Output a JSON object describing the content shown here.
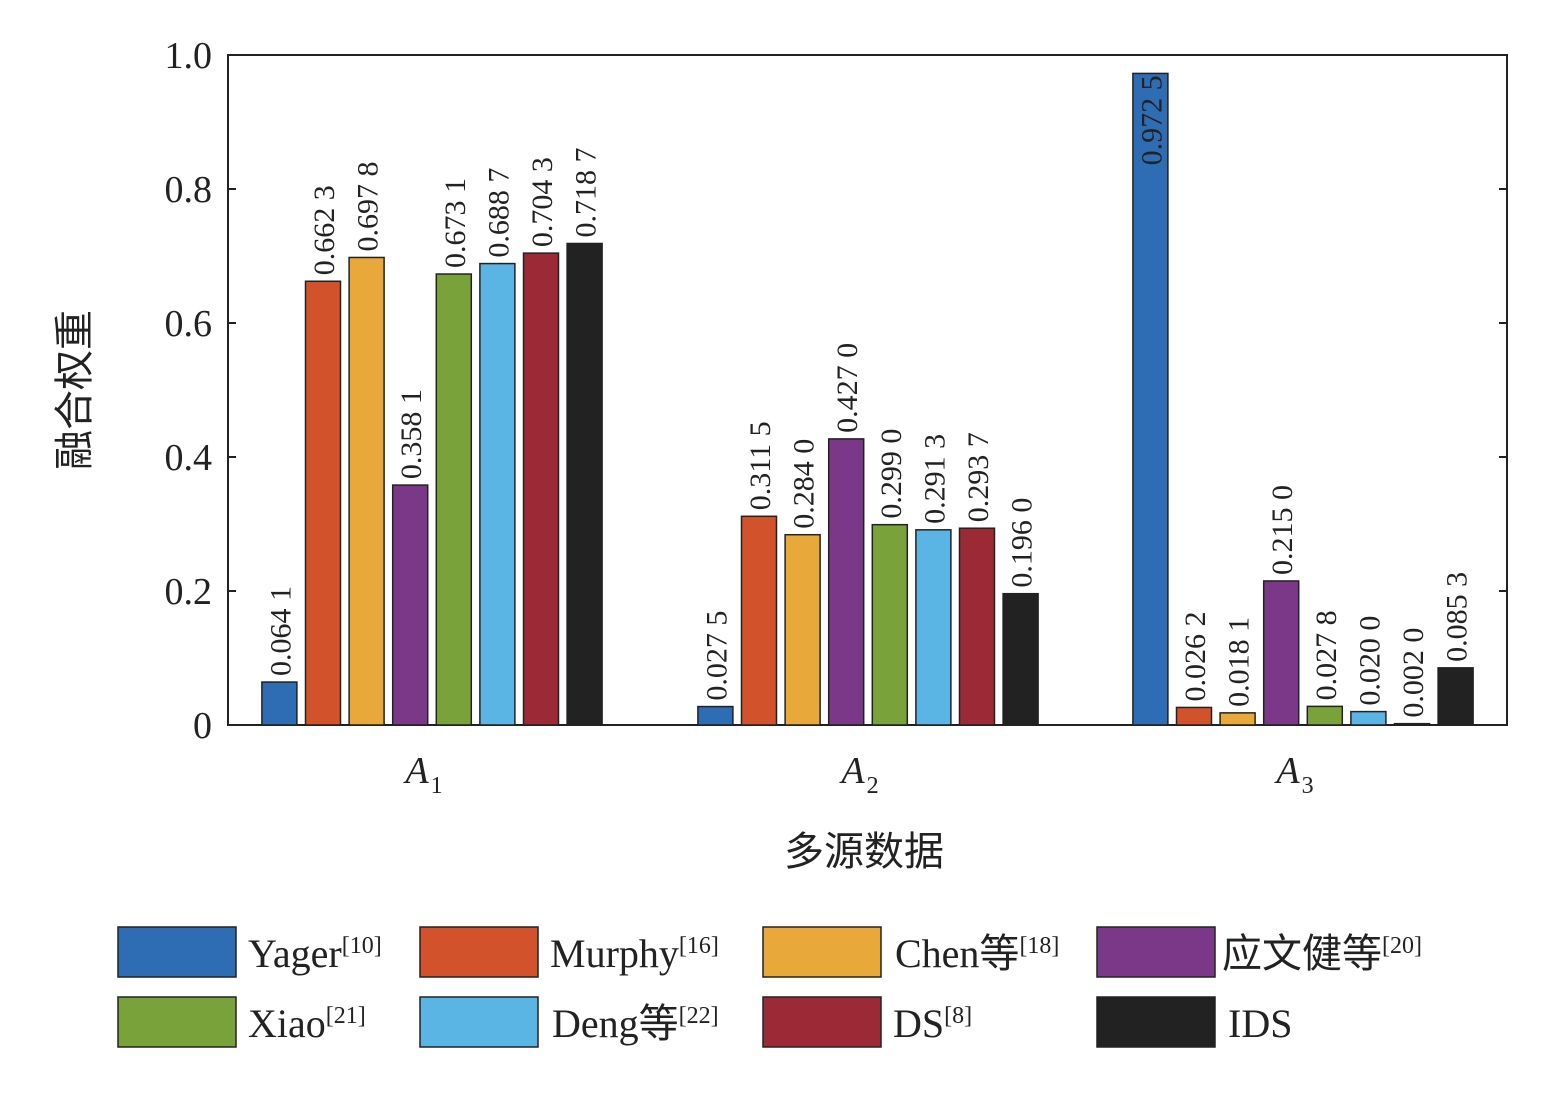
{
  "chart_data": {
    "type": "bar",
    "title": "",
    "xlabel": "多源数据",
    "ylabel": "融合权重",
    "ylim": [
      0,
      1.0
    ],
    "yticks": [
      "0",
      "0.2",
      "0.4",
      "0.6",
      "0.8",
      "1.0"
    ],
    "ytick_values": [
      0,
      0.2,
      0.4,
      0.6,
      0.8,
      1.0
    ],
    "categories": [
      {
        "main": "A",
        "sub": "1"
      },
      {
        "main": "A",
        "sub": "2"
      },
      {
        "main": "A",
        "sub": "3"
      }
    ],
    "legend_position": "bottom",
    "series": [
      {
        "name": "Yager",
        "ref": "[10]",
        "color": "#2e6db4",
        "values": [
          0.0641,
          0.0275,
          0.9725
        ],
        "labels": [
          "0.064 1",
          "0.027 5",
          "0.972 5"
        ]
      },
      {
        "name": "Murphy",
        "ref": "[16]",
        "color": "#d2522b",
        "values": [
          0.6623,
          0.3115,
          0.0262
        ],
        "labels": [
          "0.662 3",
          "0.311 5",
          "0.026 2"
        ]
      },
      {
        "name": "Chen等",
        "ref": "[18]",
        "color": "#e8a93a",
        "values": [
          0.6978,
          0.284,
          0.0181
        ],
        "labels": [
          "0.697 8",
          "0.284 0",
          "0.018 1"
        ]
      },
      {
        "name": "应文健等",
        "ref": "[20]",
        "color": "#7b3888",
        "values": [
          0.3581,
          0.427,
          0.215
        ],
        "labels": [
          "0.358 1",
          "0.427 0",
          "0.215 0"
        ]
      },
      {
        "name": "Xiao",
        "ref": "[21]",
        "color": "#79a23a",
        "values": [
          0.6731,
          0.299,
          0.0278
        ],
        "labels": [
          "0.673 1",
          "0.299 0",
          "0.027 8"
        ]
      },
      {
        "name": "Deng等",
        "ref": "[22]",
        "color": "#5bb5e4",
        "values": [
          0.6887,
          0.2913,
          0.02
        ],
        "labels": [
          "0.688 7",
          "0.291 3",
          "0.020 0"
        ]
      },
      {
        "name": "DS",
        "ref": "[8]",
        "color": "#9b2a36",
        "values": [
          0.7043,
          0.2937,
          0.002
        ],
        "labels": [
          "0.704 3",
          "0.293 7",
          "0.002 0"
        ]
      },
      {
        "name": "IDS",
        "ref": "",
        "color": "#222222",
        "values": [
          0.7187,
          0.196,
          0.0853
        ],
        "labels": [
          "0.718 7",
          "0.196 0",
          "0.085 3"
        ]
      }
    ]
  }
}
